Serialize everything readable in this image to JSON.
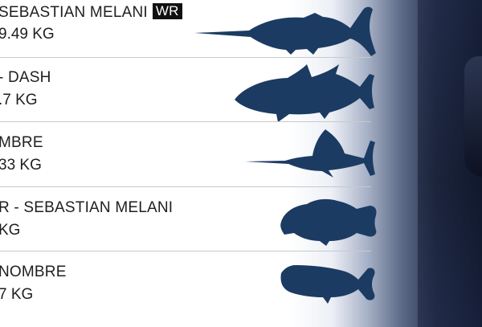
{
  "catches": [
    {
      "title": "SEBASTIAN MELANI",
      "badge": "WR",
      "weight": "9.49 KG",
      "fish_icon": "marlin-icon"
    },
    {
      "title": "- DASH",
      "weight": ".7 KG",
      "fish_icon": "tuna-icon"
    },
    {
      "title": "MBRE",
      "weight": "33 KG",
      "fish_icon": "sailfish-icon"
    },
    {
      "title": "R - SEBASTIAN MELANI",
      "weight": "KG",
      "fish_icon": "grouper-icon"
    },
    {
      "title": "NOMBRE",
      "weight": "7 KG",
      "fish_icon": "dorado-icon"
    }
  ],
  "colors": {
    "fish": "#1c3b63",
    "divider": "#c9c9c9",
    "badge_bg": "#111111",
    "text": "#1f1f1f"
  }
}
